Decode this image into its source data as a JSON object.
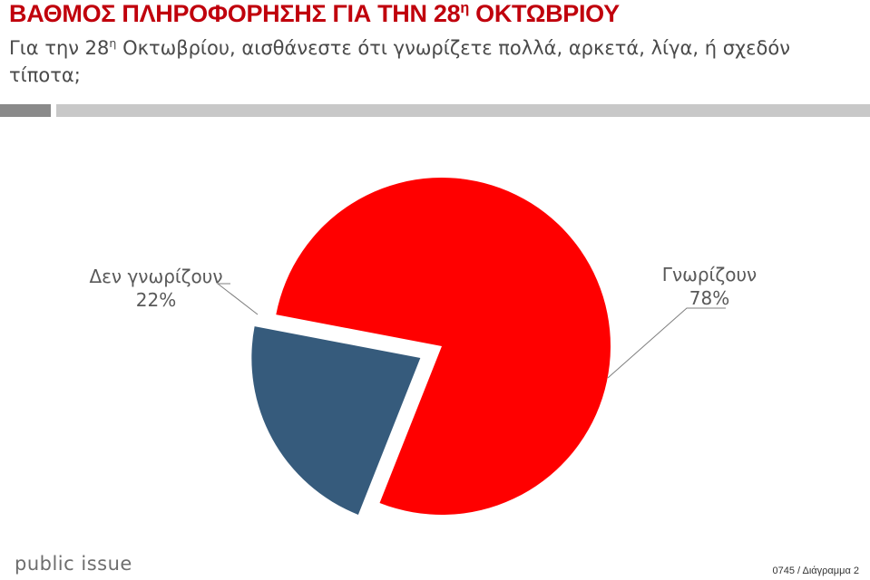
{
  "header": {
    "title_main": "ΒΑΘΜΟΣ ΠΛΗΡΟΦΟΡΗΣΗΣ ΓΙΑ ΤΗΝ 28",
    "title_sup": "η",
    "title_tail": " ΟΚΤΩΒΡΙΟΥ",
    "subtitle_main": "Για την 28",
    "subtitle_sup": "η",
    "subtitle_tail": " Οκτωβρίου, αισθάνεστε ότι γνωρίζετε πολλά, αρκετά, λίγα, ή σχεδόν τίποτα;"
  },
  "chart_data": {
    "type": "pie",
    "slices": [
      {
        "label": "Γνωρίζουν",
        "value": 78,
        "value_label": "78%",
        "color": "#ff0000"
      },
      {
        "label": "Δεν γνωρίζουν",
        "value": 22,
        "value_label": "22%",
        "color": "#365b7c",
        "exploded": true
      }
    ]
  },
  "footer": {
    "logo": "public issue",
    "code": "0745 / Διάγραμμα 2"
  }
}
